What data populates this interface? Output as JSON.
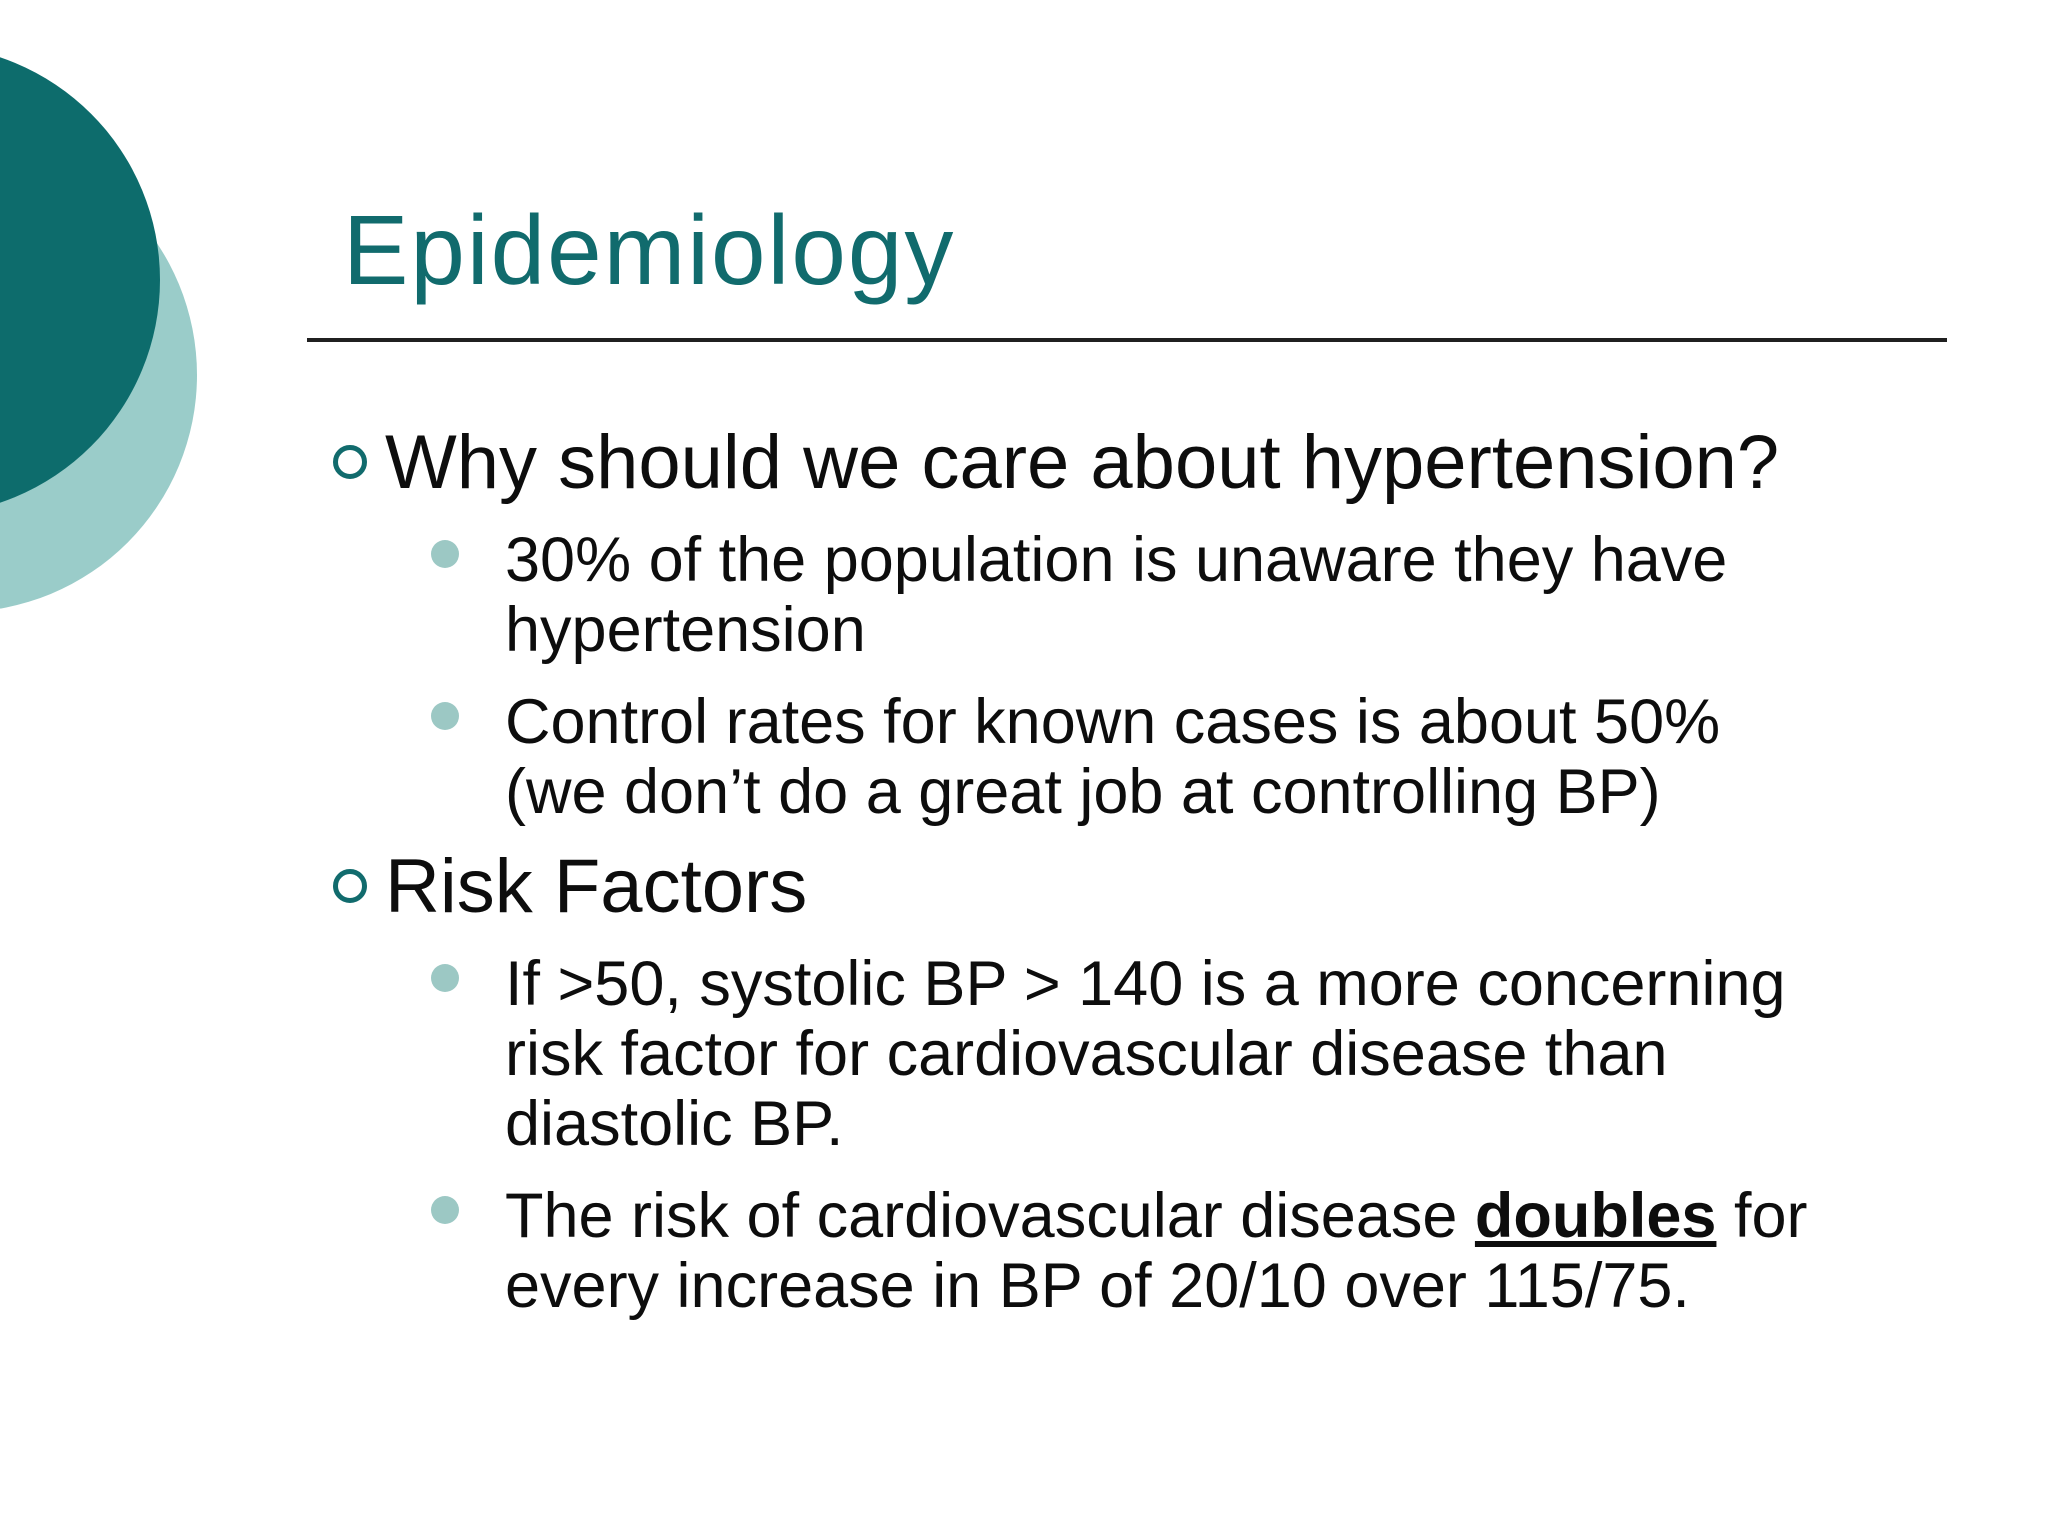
{
  "slide": {
    "title": "Epidemiology",
    "bullets": [
      {
        "level": 1,
        "lines": [
          "Why should we care about hypertension?"
        ]
      },
      {
        "level": 2,
        "lines": [
          "30% of the population is unaware they have",
          "hypertension"
        ]
      },
      {
        "level": 2,
        "lines": [
          "Control rates for known cases is about 50%",
          "(we don’t do a great job at controlling BP)"
        ]
      },
      {
        "level": 1,
        "lines": [
          "Risk Factors"
        ]
      },
      {
        "level": 2,
        "lines": [
          "If >50, systolic BP > 140 is a more concerning",
          "risk factor for cardiovascular disease than",
          "diastolic BP."
        ]
      },
      {
        "level": 2,
        "parts": [
          {
            "text": "The risk of cardiovascular disease "
          },
          {
            "text": "doubles",
            "style": "bold-underline"
          },
          {
            "text": " for\nevery increase in BP of 20/10 over 115/75."
          }
        ]
      }
    ],
    "colors": {
      "title_teal": "#116b6d",
      "decor_circle_dark": "#0d6c6c",
      "decor_circle_light": "#9accc9",
      "sub_bullet_dot": "#9cc8c4",
      "body_text": "#0d0d0d",
      "title_rule": "#202020",
      "background": "#ffffff"
    }
  }
}
